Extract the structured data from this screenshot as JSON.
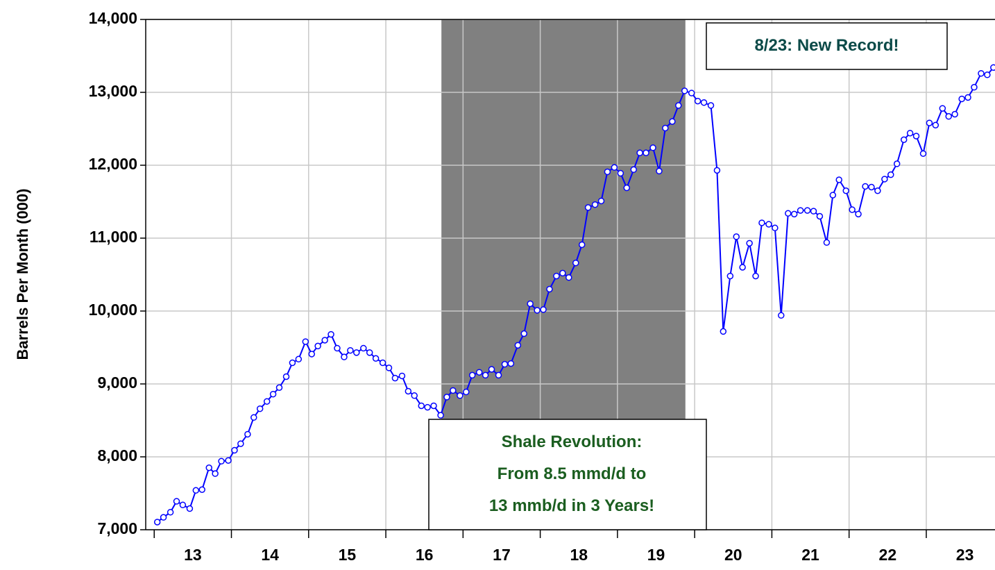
{
  "chart_data": {
    "type": "line",
    "y_axis_label": "Barrels Per Month (000)",
    "ylim": [
      7000,
      14000
    ],
    "yticks": [
      {
        "value": 7000,
        "label": "7,000"
      },
      {
        "value": 8000,
        "label": "8,000"
      },
      {
        "value": 9000,
        "label": "9,000"
      },
      {
        "value": 10000,
        "label": "10,000"
      },
      {
        "value": 11000,
        "label": "11,000"
      },
      {
        "value": 12000,
        "label": "12,000"
      },
      {
        "value": 13000,
        "label": "13,000"
      },
      {
        "value": 14000,
        "label": "14,000"
      }
    ],
    "xlim": [
      2012.89,
      2023.89
    ],
    "xticks": [
      {
        "value": 2013,
        "label": "13"
      },
      {
        "value": 2014,
        "label": "14"
      },
      {
        "value": 2015,
        "label": "15"
      },
      {
        "value": 2016,
        "label": "16"
      },
      {
        "value": 2017,
        "label": "17"
      },
      {
        "value": 2018,
        "label": "18"
      },
      {
        "value": 2019,
        "label": "19"
      },
      {
        "value": 2020,
        "label": "20"
      },
      {
        "value": 2021,
        "label": "21"
      },
      {
        "value": 2022,
        "label": "22"
      },
      {
        "value": 2023,
        "label": "23"
      }
    ],
    "grid": true,
    "shaded_region": {
      "xrange": [
        2016.72,
        2019.88
      ],
      "color": "#808080"
    },
    "x": [
      2013.04,
      2013.12,
      2013.21,
      2013.29,
      2013.37,
      2013.46,
      2013.54,
      2013.62,
      2013.71,
      2013.79,
      2013.87,
      2013.96,
      2014.04,
      2014.12,
      2014.21,
      2014.29,
      2014.37,
      2014.46,
      2014.54,
      2014.62,
      2014.71,
      2014.79,
      2014.87,
      2014.96,
      2015.04,
      2015.12,
      2015.21,
      2015.29,
      2015.37,
      2015.46,
      2015.54,
      2015.62,
      2015.71,
      2015.79,
      2015.87,
      2015.96,
      2016.04,
      2016.12,
      2016.21,
      2016.29,
      2016.37,
      2016.46,
      2016.54,
      2016.62,
      2016.71,
      2016.79,
      2016.87,
      2016.96,
      2017.04,
      2017.12,
      2017.21,
      2017.29,
      2017.37,
      2017.46,
      2017.54,
      2017.62,
      2017.71,
      2017.79,
      2017.87,
      2017.96,
      2018.04,
      2018.12,
      2018.21,
      2018.29,
      2018.37,
      2018.46,
      2018.54,
      2018.62,
      2018.71,
      2018.79,
      2018.87,
      2018.96,
      2019.04,
      2019.12,
      2019.21,
      2019.29,
      2019.37,
      2019.46,
      2019.54,
      2019.62,
      2019.71,
      2019.79,
      2019.87,
      2019.96,
      2020.04,
      2020.12,
      2020.21,
      2020.29,
      2020.37,
      2020.46,
      2020.54,
      2020.62,
      2020.71,
      2020.79,
      2020.87,
      2020.96,
      2021.04,
      2021.12,
      2021.21,
      2021.29,
      2021.37,
      2021.46,
      2021.54,
      2021.62,
      2021.71,
      2021.79,
      2021.87,
      2021.96,
      2022.04,
      2022.12,
      2022.21,
      2022.29,
      2022.37,
      2022.46,
      2022.54,
      2022.62,
      2022.71,
      2022.79,
      2022.87,
      2022.96,
      2023.04,
      2023.12,
      2023.21,
      2023.29,
      2023.37,
      2023.46,
      2023.54,
      2023.62,
      2023.71,
      2023.79,
      2023.87
    ],
    "series": [
      {
        "color": "#0000ff",
        "marker_fill": "#ffffff",
        "values": [
          7105,
          7170,
          7240,
          7390,
          7340,
          7290,
          7540,
          7550,
          7850,
          7770,
          7940,
          7950,
          8090,
          8180,
          8310,
          8540,
          8660,
          8760,
          8860,
          8950,
          9100,
          9290,
          9340,
          9580,
          9410,
          9520,
          9600,
          9680,
          9490,
          9370,
          9460,
          9430,
          9490,
          9430,
          9350,
          9290,
          9220,
          9080,
          9110,
          8900,
          8840,
          8700,
          8680,
          8700,
          8570,
          8820,
          8910,
          8840,
          8890,
          9120,
          9160,
          9120,
          9200,
          9120,
          9270,
          9280,
          9530,
          9690,
          10100,
          10010,
          10020,
          10300,
          10480,
          10520,
          10460,
          10660,
          10910,
          11420,
          11460,
          11510,
          11910,
          11970,
          11890,
          11690,
          11940,
          12170,
          12170,
          12240,
          11920,
          12510,
          12600,
          12820,
          13020,
          12990,
          12880,
          12860,
          12820,
          11930,
          9720,
          10480,
          11020,
          10600,
          10930,
          10480,
          11210,
          11190,
          11140,
          9940,
          11340,
          11330,
          11380,
          11380,
          11370,
          11300,
          10940,
          11590,
          11800,
          11650,
          11390,
          11330,
          11710,
          11700,
          11650,
          11810,
          11870,
          12020,
          12350,
          12440,
          12400,
          12160,
          12580,
          12550,
          12780,
          12670,
          12700,
          12910,
          12930,
          13070,
          13260,
          13240,
          13340
        ]
      }
    ],
    "annotations": [
      {
        "lines": [
          "8/23: New Record!"
        ],
        "color": "#0b4a48"
      },
      {
        "lines": [
          "Shale Revolution:",
          "From 8.5 mmd/d to",
          "13 mmb/d in 3 Years!"
        ],
        "color": "#1b5e20"
      }
    ]
  }
}
